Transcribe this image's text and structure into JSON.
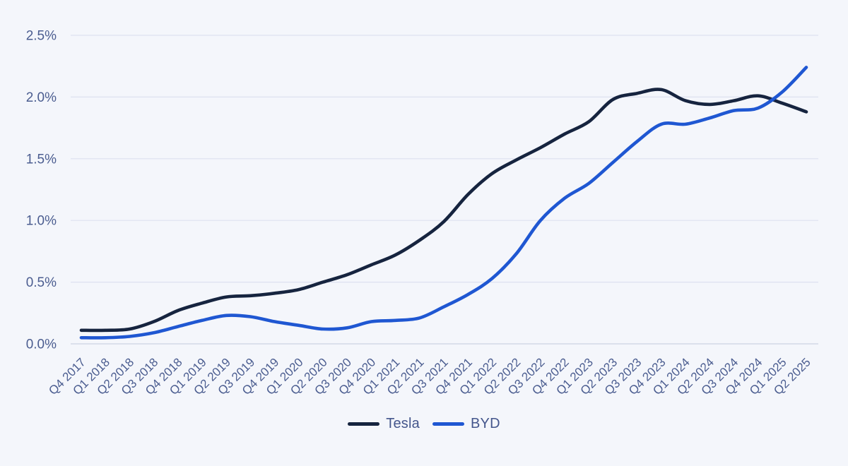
{
  "chart_data": {
    "type": "line",
    "title": "",
    "xlabel": "",
    "ylabel": "",
    "ylim": [
      0,
      2.5
    ],
    "yticks": [
      0.0,
      0.5,
      1.0,
      1.5,
      2.0,
      2.5
    ],
    "ytick_labels": [
      "0.0%",
      "0.5%",
      "1.0%",
      "1.5%",
      "2.0%",
      "2.5%"
    ],
    "grid": "horizontal",
    "legend_position": "bottom-center",
    "categories": [
      "Q4 2017",
      "Q1 2018",
      "Q2 2018",
      "Q3 2018",
      "Q4 2018",
      "Q1 2019",
      "Q2 2019",
      "Q3 2019",
      "Q4 2019",
      "Q1 2020",
      "Q2 2020",
      "Q3 2020",
      "Q4 2020",
      "Q1 2021",
      "Q2 2021",
      "Q3 2021",
      "Q4 2021",
      "Q1 2022",
      "Q2 2022",
      "Q3 2022",
      "Q4 2022",
      "Q1 2023",
      "Q2 2023",
      "Q3 2023",
      "Q4 2023",
      "Q1 2024",
      "Q2 2024",
      "Q3 2024",
      "Q4 2024",
      "Q1 2025",
      "Q2 2025"
    ],
    "series": [
      {
        "name": "Tesla",
        "color": "#16243f",
        "values": [
          0.11,
          0.11,
          0.12,
          0.18,
          0.27,
          0.33,
          0.38,
          0.39,
          0.41,
          0.44,
          0.5,
          0.56,
          0.64,
          0.72,
          0.84,
          0.99,
          1.21,
          1.38,
          1.49,
          1.59,
          1.7,
          1.8,
          1.98,
          2.03,
          2.06,
          1.97,
          1.94,
          1.97,
          2.01,
          1.95,
          1.88
        ]
      },
      {
        "name": "BYD",
        "color": "#1f57d2",
        "values": [
          0.05,
          0.05,
          0.06,
          0.09,
          0.14,
          0.19,
          0.23,
          0.22,
          0.18,
          0.15,
          0.12,
          0.13,
          0.18,
          0.19,
          0.21,
          0.3,
          0.4,
          0.53,
          0.73,
          1.0,
          1.18,
          1.3,
          1.47,
          1.64,
          1.78,
          1.78,
          1.83,
          1.89,
          1.91,
          2.04,
          2.24
        ]
      }
    ]
  },
  "colors": {
    "background": "#f4f6fb",
    "gridline": "#dde1f0",
    "baseline": "#ccd2e2",
    "axis_text": "#4b5d90",
    "legend_text": "#44568c"
  }
}
